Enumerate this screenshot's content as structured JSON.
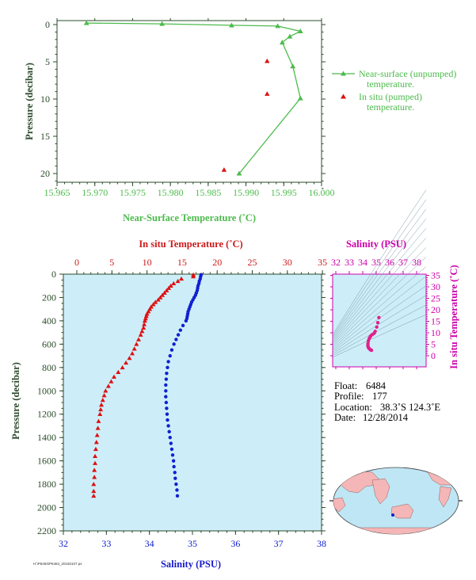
{
  "colors": {
    "near_surface": "#4cbb4c",
    "in_situ": "#dd1111",
    "salinity": "#1020d0",
    "ts_plot": "#cc00aa",
    "axis_dark": "#2b4b2b",
    "panel_bg": "#cdeef9",
    "red_label": "#cc1a1a",
    "blue_label": "#1a1acc"
  },
  "chart_data": [
    {
      "type": "line",
      "name": "near-surface-temperature-profile",
      "xlabel": "Near-Surface Temperature (˚C)",
      "ylabel": "Pressure (decibar)",
      "xlim": [
        15.965,
        16.0
      ],
      "ylim": [
        0,
        22
      ],
      "y_inverted": true,
      "xticks": [
        "15.965",
        "15.970",
        "15.975",
        "15.980",
        "15.985",
        "15.990",
        "15.995",
        "16.000"
      ],
      "yticks": [
        "0",
        "5",
        "10",
        "15",
        "20"
      ],
      "series": [
        {
          "name": "Near-surface (unpumped) temperature.",
          "marker": "triangle",
          "style": "line",
          "x": [
            15.9689,
            15.9789,
            15.9881,
            15.9942,
            15.9972,
            15.9958,
            15.9948,
            15.9962,
            15.9972,
            15.9891
          ],
          "y": [
            -0.2,
            -0.1,
            0.1,
            0.2,
            0.9,
            1.6,
            2.4,
            5.6,
            9.9,
            20.0
          ]
        },
        {
          "name": "In situ (pumped) temperature.",
          "marker": "triangle",
          "style": "points",
          "x": [
            15.9928,
            15.9928,
            15.9871
          ],
          "y": [
            4.9,
            9.3,
            19.5
          ]
        }
      ],
      "legend_position": "right"
    },
    {
      "type": "scatter",
      "name": "profile-temperature-salinity",
      "xlabel": "Salinity (PSU)",
      "x2label": "In situ Temperature (˚C)",
      "ylabel": "Pressure (decibar)",
      "xlim": [
        32,
        38
      ],
      "x2lim": [
        0,
        35
      ],
      "ylim": [
        0,
        2200
      ],
      "y_inverted": true,
      "xticks": [
        "32",
        "33",
        "34",
        "35",
        "36",
        "37",
        "38"
      ],
      "x2ticks": [
        "0",
        "5",
        "10",
        "15",
        "20",
        "25",
        "30",
        "35"
      ],
      "yticks": [
        "0",
        "200",
        "400",
        "600",
        "800",
        "1000",
        "1200",
        "1400",
        "1600",
        "1800",
        "2000",
        "2200"
      ],
      "temperature_series": {
        "name": "In situ Temperature",
        "pressure": [
          5,
          20,
          40,
          60,
          80,
          100,
          120,
          140,
          160,
          180,
          200,
          220,
          240,
          260,
          280,
          300,
          320,
          340,
          360,
          380,
          400,
          430,
          460,
          490,
          520,
          560,
          600,
          640,
          680,
          720,
          760,
          800,
          840,
          880,
          920,
          960,
          1000,
          1040,
          1080,
          1120,
          1160,
          1200,
          1260,
          1320,
          1380,
          1440,
          1500,
          1560,
          1620,
          1680,
          1740,
          1800,
          1860,
          1900
        ],
        "temperature": [
          16.6,
          16.6,
          14.9,
          14.4,
          13.8,
          13.4,
          13.1,
          12.8,
          12.5,
          12.2,
          11.9,
          11.6,
          11.2,
          10.9,
          10.6,
          10.4,
          10.2,
          10.0,
          9.9,
          9.8,
          9.7,
          9.6,
          9.5,
          9.3,
          9.1,
          8.8,
          8.5,
          8.2,
          7.9,
          7.5,
          7.0,
          6.5,
          5.9,
          5.3,
          4.9,
          4.5,
          4.1,
          3.9,
          3.7,
          3.5,
          3.4,
          3.3,
          3.1,
          3.0,
          2.9,
          2.8,
          2.7,
          2.6,
          2.6,
          2.5,
          2.5,
          2.4,
          2.4,
          2.4
        ]
      },
      "salinity_series": {
        "name": "Salinity",
        "pressure": [
          5,
          20,
          40,
          60,
          80,
          100,
          120,
          140,
          160,
          180,
          200,
          220,
          240,
          260,
          280,
          300,
          320,
          340,
          360,
          380,
          400,
          440,
          480,
          520,
          560,
          600,
          650,
          700,
          750,
          800,
          850,
          900,
          950,
          1000,
          1050,
          1100,
          1150,
          1200,
          1250,
          1300,
          1350,
          1400,
          1450,
          1500,
          1550,
          1600,
          1650,
          1700,
          1750,
          1800,
          1850,
          1900
        ],
        "salinity": [
          35.2,
          35.19,
          35.18,
          35.16,
          35.15,
          35.13,
          35.12,
          35.11,
          35.09,
          35.07,
          35.04,
          35.01,
          34.98,
          34.96,
          34.94,
          34.92,
          34.9,
          34.89,
          34.88,
          34.87,
          34.85,
          34.78,
          34.72,
          34.67,
          34.62,
          34.57,
          34.52,
          34.48,
          34.44,
          34.42,
          34.4,
          34.39,
          34.38,
          34.38,
          34.38,
          34.39,
          34.4,
          34.41,
          34.42,
          34.44,
          34.46,
          34.48,
          34.5,
          34.52,
          34.54,
          34.56,
          34.57,
          34.59,
          34.6,
          34.62,
          34.64,
          34.65
        ]
      }
    },
    {
      "type": "scatter",
      "name": "temperature-salinity-diagram",
      "title": "Salinity (PSU)",
      "ylabel": "In situ Temperature (˚C)",
      "xlim": [
        32,
        38
      ],
      "ylim": [
        -2,
        35
      ],
      "xticks": [
        "32",
        "33",
        "34",
        "35",
        "36",
        "37",
        "38"
      ],
      "yticks": [
        "0",
        "5",
        "10",
        "15",
        "20",
        "25",
        "30",
        "35"
      ],
      "salinity": [
        35.2,
        35.12,
        35.04,
        34.92,
        34.85,
        34.72,
        34.62,
        34.55,
        34.48,
        34.42,
        34.39,
        34.38,
        34.4,
        34.44,
        34.5,
        34.56,
        34.6,
        34.65
      ],
      "temperature": [
        16.6,
        14.4,
        12.5,
        10.6,
        9.8,
        9.3,
        8.8,
        8.2,
        7.5,
        6.5,
        5.3,
        4.5,
        3.9,
        3.4,
        3.0,
        2.7,
        2.5,
        2.4
      ]
    }
  ],
  "legend": {
    "near_surface_line1": "Near-surface (unpumped)",
    "near_surface_line2": "temperature.",
    "in_situ_line1": "In situ (pumped)",
    "in_situ_line2": "temperature."
  },
  "float_info": {
    "float_label": "Float:",
    "float_value": "6484",
    "profile_label": "Profile:",
    "profile_value": "177",
    "location_label": "Location:",
    "location_value": "38.3˚S  124.3˚E",
    "date_label": "Date:",
    "date_value": "12/28/2014"
  },
  "footer_note": "H:\\P6484\\P6484_20150107.ps"
}
